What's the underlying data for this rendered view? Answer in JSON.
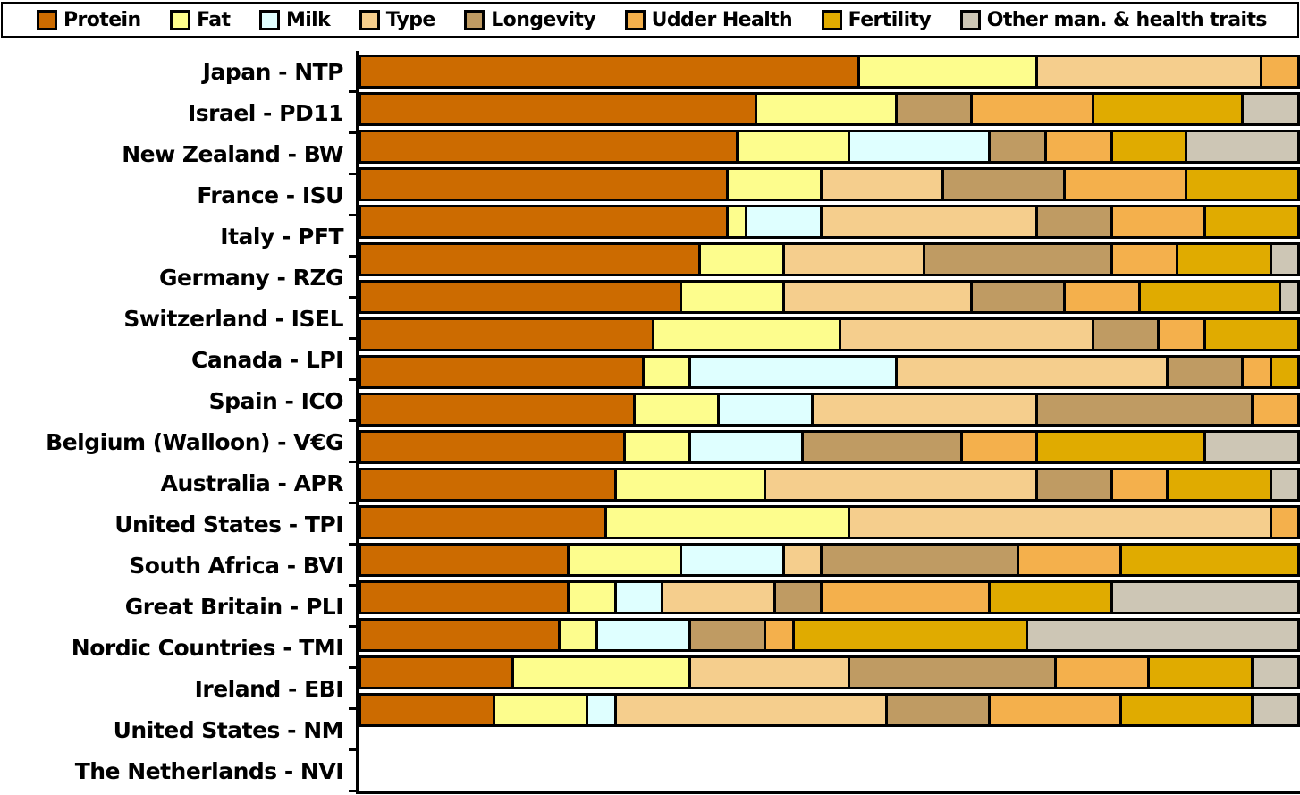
{
  "chart_data": {
    "type": "bar",
    "subtype": "horizontal-stacked",
    "unit": "relative weight (%) of traits in national total merit index",
    "xlim": [
      0,
      100
    ],
    "grid": false,
    "legend_position": "top",
    "axis_color": "#000000",
    "categories": [
      "Japan - NTP",
      "Israel - PD11",
      "New Zealand - BW",
      "France - ISU",
      "Italy - PFT",
      "Germany - RZG",
      "Switzerland - ISEL",
      "Canada - LPI",
      "Spain - ICO",
      "Belgium (Walloon) - V€G",
      "Australia - APR",
      "United States - TPI",
      "South Africa - BVI",
      "Great Britain - PLI",
      "Nordic Countries - TMI",
      "Ireland - EBI",
      "United States - NM",
      "The Netherlands - NVI"
    ],
    "series": [
      {
        "name": "Protein",
        "color": "#CC6B00",
        "values": [
          53,
          42,
          40,
          39,
          39,
          36,
          34,
          31,
          30,
          29,
          28,
          27,
          26,
          22,
          22,
          21,
          16,
          14
        ]
      },
      {
        "name": "Fat",
        "color": "#FDFD8D",
        "values": [
          19,
          15,
          12,
          10,
          2,
          9,
          11,
          20,
          5,
          9,
          7,
          16,
          26,
          12,
          5,
          4,
          19,
          10
        ]
      },
      {
        "name": "Milk",
        "color": "#DFFFFF",
        "values": [
          0,
          0,
          15,
          0,
          8,
          0,
          0,
          0,
          22,
          10,
          12,
          0,
          0,
          11,
          5,
          10,
          0,
          3
        ]
      },
      {
        "name": "Type",
        "color": "#F5CE8D",
        "values": [
          24,
          0,
          0,
          13,
          23,
          15,
          20,
          27,
          29,
          24,
          0,
          29,
          45,
          4,
          12,
          0,
          17,
          29
        ]
      },
      {
        "name": "Longevity",
        "color": "#BF9B63",
        "values": [
          0,
          8,
          6,
          13,
          8,
          20,
          10,
          7,
          8,
          23,
          17,
          8,
          0,
          21,
          5,
          8,
          22,
          11
        ]
      },
      {
        "name": "Udder Health",
        "color": "#F4B04C",
        "values": [
          4,
          13,
          7,
          13,
          10,
          7,
          8,
          5,
          3,
          5,
          8,
          6,
          3,
          11,
          18,
          3,
          10,
          14
        ]
      },
      {
        "name": "Fertility",
        "color": "#E0AB00",
        "values": [
          0,
          16,
          8,
          12,
          10,
          10,
          15,
          10,
          3,
          0,
          18,
          11,
          0,
          19,
          13,
          25,
          11,
          14
        ]
      },
      {
        "name": "Other man. & health traits",
        "color": "#CDC6B5",
        "values": [
          0,
          6,
          12,
          0,
          0,
          3,
          2,
          0,
          0,
          0,
          10,
          3,
          0,
          0,
          20,
          29,
          5,
          5
        ]
      }
    ]
  }
}
